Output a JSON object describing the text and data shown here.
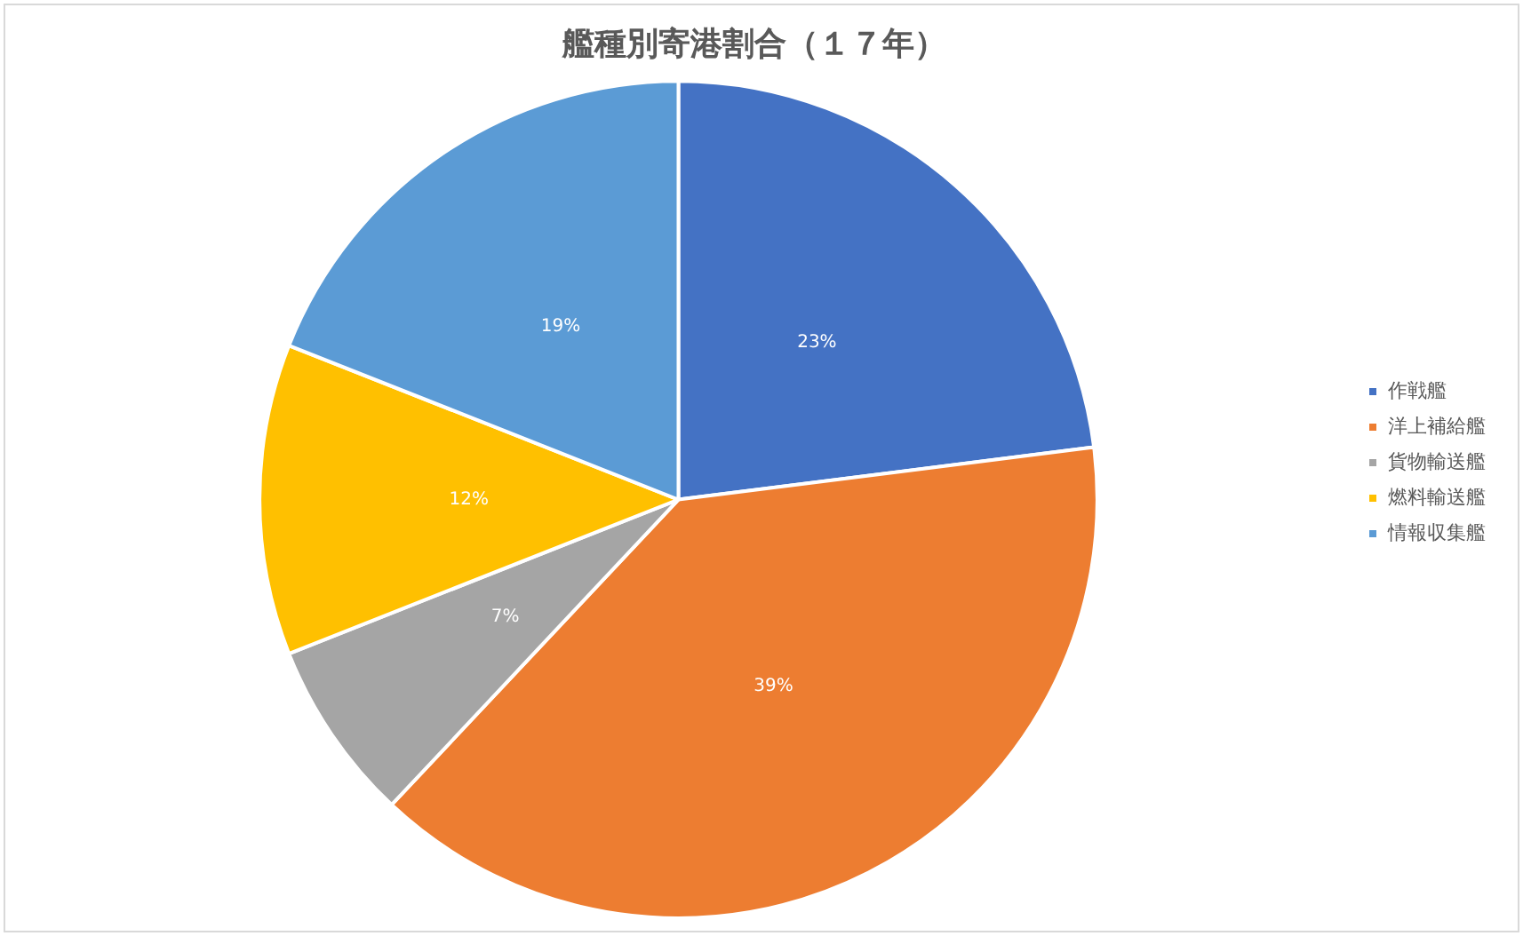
{
  "chart_data": {
    "type": "pie",
    "title": "艦種別寄港割合（１７年）",
    "categories": [
      "作戦艦",
      "洋上補給艦",
      "貨物輸送艦",
      "燃料輸送艦",
      "情報収集艦"
    ],
    "values": [
      23,
      39,
      7,
      12,
      19
    ],
    "value_labels": [
      "23%",
      "39%",
      "7%",
      "12%",
      "19%"
    ],
    "colors": [
      "#4472c4",
      "#ed7d31",
      "#a5a5a5",
      "#ffc000",
      "#5b9bd5"
    ],
    "legend": "right"
  }
}
